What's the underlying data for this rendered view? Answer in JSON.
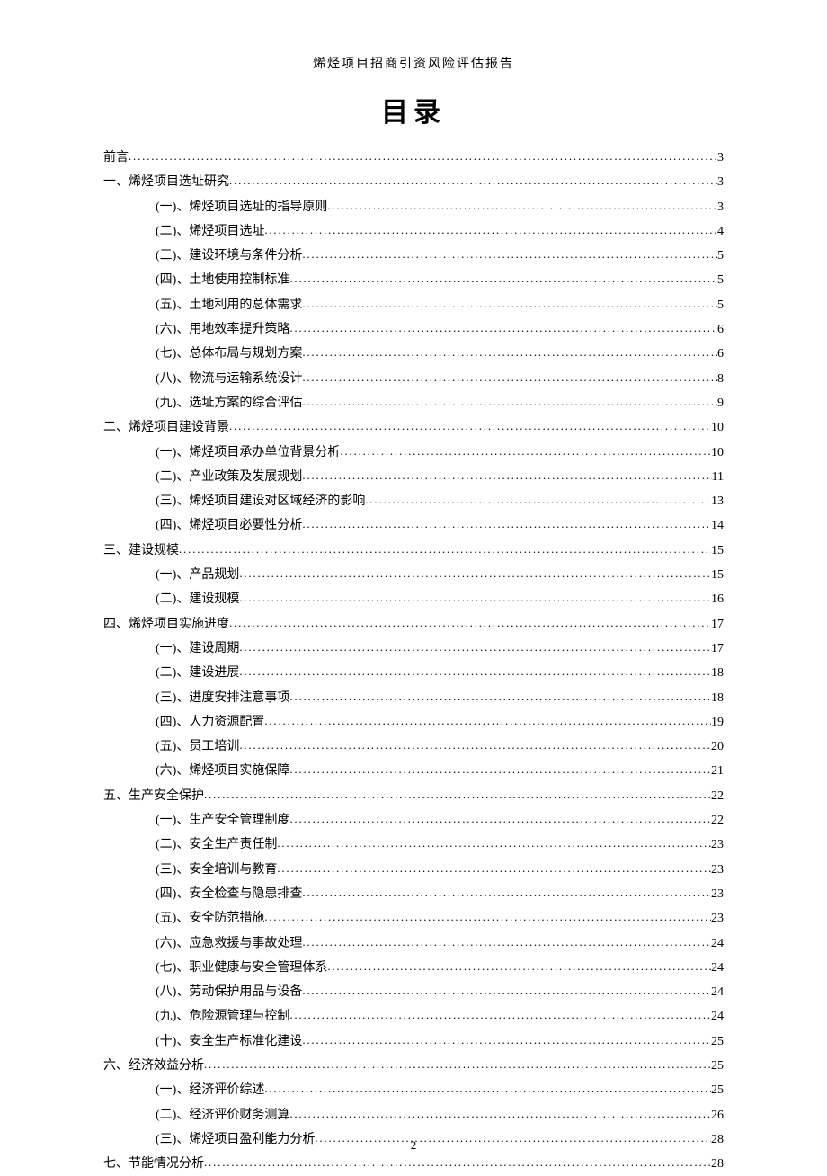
{
  "header": "烯烃项目招商引资风险评估报告",
  "title": "目录",
  "page_number": "2",
  "toc": [
    {
      "level": 0,
      "text": "前言",
      "page": "3"
    },
    {
      "level": 0,
      "text": "一、烯烃项目选址研究",
      "page": "3"
    },
    {
      "level": 1,
      "text": "(一)、烯烃项目选址的指导原则",
      "page": "3"
    },
    {
      "level": 1,
      "text": "(二)、烯烃项目选址",
      "page": "4"
    },
    {
      "level": 1,
      "text": "(三)、建设环境与条件分析",
      "page": "5"
    },
    {
      "level": 1,
      "text": "(四)、土地使用控制标准",
      "page": "5"
    },
    {
      "level": 1,
      "text": "(五)、土地利用的总体需求",
      "page": "5"
    },
    {
      "level": 1,
      "text": "(六)、用地效率提升策略",
      "page": "6"
    },
    {
      "level": 1,
      "text": "(七)、总体布局与规划方案",
      "page": "6"
    },
    {
      "level": 1,
      "text": "(八)、物流与运输系统设计",
      "page": "8"
    },
    {
      "level": 1,
      "text": "(九)、选址方案的综合评估",
      "page": "9"
    },
    {
      "level": 0,
      "text": "二、烯烃项目建设背景",
      "page": "10"
    },
    {
      "level": 1,
      "text": "(一)、烯烃项目承办单位背景分析",
      "page": "10"
    },
    {
      "level": 1,
      "text": "(二)、产业政策及发展规划",
      "page": "11"
    },
    {
      "level": 1,
      "text": "(三)、烯烃项目建设对区域经济的影响",
      "page": "13"
    },
    {
      "level": 1,
      "text": "(四)、烯烃项目必要性分析",
      "page": "14"
    },
    {
      "level": 0,
      "text": "三、建设规模",
      "page": "15"
    },
    {
      "level": 1,
      "text": "(一)、产品规划",
      "page": "15"
    },
    {
      "level": 1,
      "text": "(二)、建设规模",
      "page": "16"
    },
    {
      "level": 0,
      "text": "四、烯烃项目实施进度",
      "page": "17"
    },
    {
      "level": 1,
      "text": "(一)、建设周期",
      "page": "17"
    },
    {
      "level": 1,
      "text": "(二)、建设进展",
      "page": "18"
    },
    {
      "level": 1,
      "text": "(三)、进度安排注意事项",
      "page": "18"
    },
    {
      "level": 1,
      "text": "(四)、人力资源配置",
      "page": "19"
    },
    {
      "level": 1,
      "text": "(五)、员工培训",
      "page": "20"
    },
    {
      "level": 1,
      "text": "(六)、烯烃项目实施保障",
      "page": "21"
    },
    {
      "level": 0,
      "text": "五、生产安全保护",
      "page": "22"
    },
    {
      "level": 1,
      "text": "(一)、生产安全管理制度",
      "page": "22"
    },
    {
      "level": 1,
      "text": "(二)、安全生产责任制",
      "page": "23"
    },
    {
      "level": 1,
      "text": "(三)、安全培训与教育",
      "page": "23"
    },
    {
      "level": 1,
      "text": "(四)、安全检查与隐患排查",
      "page": "23"
    },
    {
      "level": 1,
      "text": "(五)、安全防范措施",
      "page": "23"
    },
    {
      "level": 1,
      "text": "(六)、应急救援与事故处理",
      "page": "24"
    },
    {
      "level": 1,
      "text": "(七)、职业健康与安全管理体系",
      "page": "24"
    },
    {
      "level": 1,
      "text": "(八)、劳动保护用品与设备",
      "page": "24"
    },
    {
      "level": 1,
      "text": "(九)、危险源管理与控制",
      "page": "24"
    },
    {
      "level": 1,
      "text": "(十)、安全生产标准化建设",
      "page": "25"
    },
    {
      "level": 0,
      "text": "六、经济效益分析",
      "page": "25"
    },
    {
      "level": 1,
      "text": "(一)、经济评价综述",
      "page": "25"
    },
    {
      "level": 1,
      "text": "(二)、经济评价财务测算",
      "page": "26"
    },
    {
      "level": 1,
      "text": "(三)、烯烃项目盈利能力分析",
      "page": "28"
    },
    {
      "level": 0,
      "text": "七、节能情况分析",
      "page": "28"
    }
  ]
}
